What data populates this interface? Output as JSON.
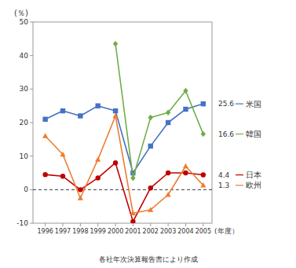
{
  "chart_data": {
    "type": "line",
    "x": [
      1996,
      1997,
      1998,
      1999,
      2000,
      2001,
      2002,
      2003,
      2004,
      2005
    ],
    "series": [
      {
        "name": "米国",
        "color": "#4472c4",
        "marker": "square",
        "values": [
          21.0,
          23.5,
          22.0,
          25.0,
          23.5,
          5.0,
          13.0,
          20.0,
          24.0,
          25.6
        ]
      },
      {
        "name": "韓国",
        "color": "#70ad47",
        "marker": "diamond",
        "values": [
          null,
          null,
          null,
          null,
          43.5,
          3.5,
          21.5,
          23.0,
          29.5,
          16.6
        ]
      },
      {
        "name": "日本",
        "color": "#c00000",
        "marker": "circle",
        "values": [
          4.5,
          4.0,
          0.0,
          3.5,
          8.0,
          -9.5,
          0.5,
          5.0,
          5.0,
          4.4
        ]
      },
      {
        "name": "欧州",
        "color": "#ed7d31",
        "marker": "triangle",
        "values": [
          16.0,
          10.5,
          -2.5,
          9.0,
          22.0,
          -7.0,
          -6.0,
          -1.5,
          7.0,
          1.3
        ]
      }
    ],
    "y_label": "(％)",
    "x_label": "(年度）",
    "source": "各社年次決算報告書により作成",
    "xlim": [
      1995.3,
      2005.5
    ],
    "xticks": [
      1996,
      1997,
      1998,
      1999,
      2000,
      2001,
      2002,
      2003,
      2004,
      2005
    ],
    "ylim": [
      -10,
      50
    ],
    "yticks": [
      -10,
      0,
      10,
      20,
      30,
      40,
      50
    ],
    "reference_lines": [
      {
        "y": 0,
        "line_style": "dashed"
      }
    ],
    "grid": false
  }
}
